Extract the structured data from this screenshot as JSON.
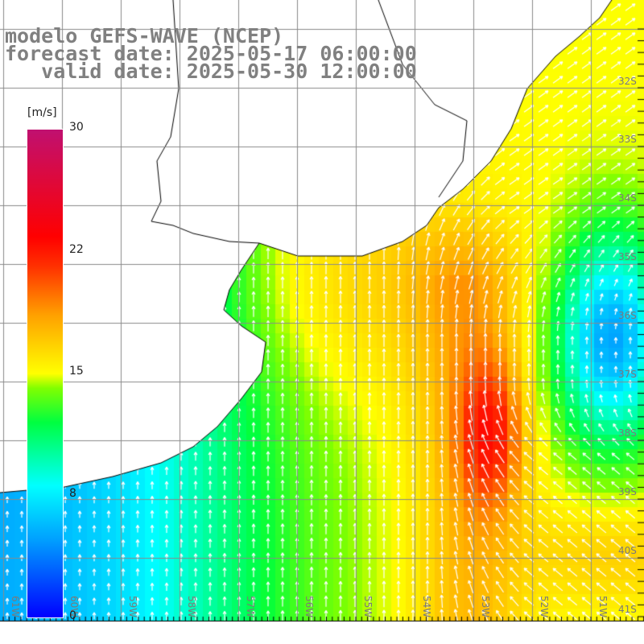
{
  "title": {
    "line1": "modelo GEFS-WAVE (NCEP)",
    "line2": "forecast date: 2025-05-17 06:00:00",
    "line3": "   valid date: 2025-05-30 12:00:00"
  },
  "colorbar": {
    "units": "[m/s]",
    "labels": [
      "30",
      "22",
      "15",
      "8",
      "0"
    ]
  },
  "lat_labels": [
    "32S",
    "33S",
    "34S",
    "35S",
    "36S",
    "37S",
    "38S",
    "39S",
    "40S",
    "41S"
  ],
  "lon_labels": [
    "61W",
    "60W",
    "59W",
    "58W",
    "57W",
    "56W",
    "55W",
    "54W",
    "53W",
    "52W",
    "51W"
  ]
}
